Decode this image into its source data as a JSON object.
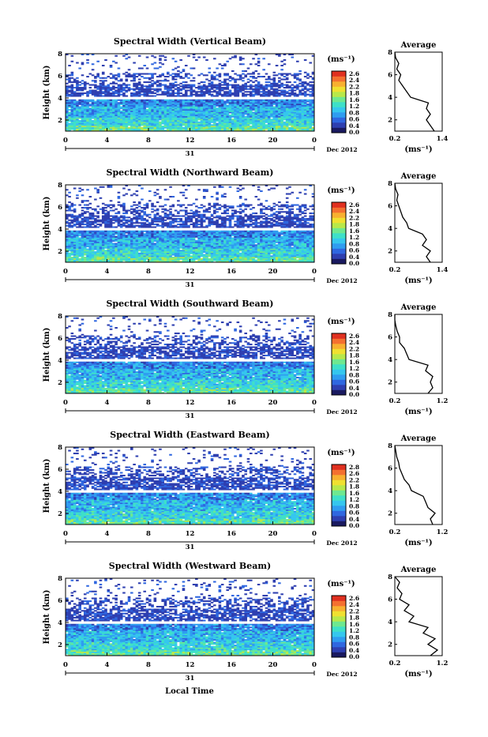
{
  "common": {
    "ylabel": "Height (km)",
    "x_ticks": [
      "0",
      "4",
      "8",
      "12",
      "16",
      "20",
      "0"
    ],
    "y_ticks": [
      "2",
      "4",
      "6",
      "8"
    ],
    "day": "31",
    "month_label": "Dec 2012",
    "units": "(ms⁻¹)",
    "avg_title": "Average",
    "xlabel": "Local Time"
  },
  "colorbar": {
    "colors": [
      "#1a1a60",
      "#2e3fb0",
      "#2f67e0",
      "#2f9df0",
      "#35c7ee",
      "#3ee0c8",
      "#6ee890",
      "#b8e84a",
      "#f0e030",
      "#f8b030",
      "#f47030",
      "#e03020"
    ]
  },
  "chart_data": [
    {
      "type": "heatmap",
      "title": "Spectral Width (Vertical Beam)",
      "x_range": [
        0,
        24
      ],
      "y_range": [
        1,
        8
      ],
      "colorbar_labels": [
        "2.6",
        "2.4",
        "2.2",
        "1.8",
        "1.6",
        "1.2",
        "0.8",
        "0.6",
        "0.4",
        "0.0"
      ],
      "average_profile": {
        "xlim": [
          0.2,
          1.4
        ],
        "x_ticks": [
          "0.2",
          "1.4"
        ],
        "ylim": [
          1,
          8
        ],
        "height": [
          1.0,
          1.5,
          2.0,
          2.5,
          3.0,
          3.5,
          4.0,
          4.5,
          5.0,
          5.5,
          6.0,
          6.5,
          7.0,
          7.5,
          8.0
        ],
        "width": [
          1.2,
          1.1,
          1.0,
          1.1,
          1.0,
          1.05,
          0.6,
          0.5,
          0.4,
          0.3,
          0.35,
          0.25,
          0.3,
          0.22,
          0.2
        ]
      }
    },
    {
      "type": "heatmap",
      "title": "Spectral Width (Northward Beam)",
      "x_range": [
        0,
        24
      ],
      "y_range": [
        1,
        8
      ],
      "colorbar_labels": [
        "2.6",
        "2.4",
        "2.2",
        "1.8",
        "1.6",
        "1.2",
        "0.8",
        "0.6",
        "0.4",
        "0.0"
      ],
      "average_profile": {
        "xlim": [
          0.2,
          1.4
        ],
        "x_ticks": [
          "0.2",
          "1.4"
        ],
        "ylim": [
          1,
          8
        ],
        "height": [
          1.0,
          1.5,
          2.0,
          2.5,
          3.0,
          3.5,
          4.0,
          4.5,
          5.0,
          5.5,
          6.0,
          6.5,
          7.0,
          7.5,
          8.0
        ],
        "width": [
          1.1,
          1.0,
          1.1,
          0.9,
          1.0,
          0.9,
          0.55,
          0.5,
          0.4,
          0.35,
          0.3,
          0.25,
          0.28,
          0.22,
          0.2
        ]
      }
    },
    {
      "type": "heatmap",
      "title": "Spectral Width (Southward Beam)",
      "x_range": [
        0,
        24
      ],
      "y_range": [
        1,
        8
      ],
      "colorbar_labels": [
        "2.6",
        "2.4",
        "2.2",
        "1.8",
        "1.6",
        "1.2",
        "0.8",
        "0.6",
        "0.4",
        "0.0"
      ],
      "average_profile": {
        "xlim": [
          0.2,
          1.2
        ],
        "x_ticks": [
          "0.2",
          "1.2"
        ],
        "ylim": [
          1,
          8
        ],
        "height": [
          1.0,
          1.5,
          2.0,
          2.5,
          3.0,
          3.5,
          4.0,
          4.5,
          5.0,
          5.5,
          6.0,
          6.5,
          7.0,
          7.5,
          8.0
        ],
        "width": [
          0.9,
          1.0,
          0.95,
          1.0,
          0.85,
          0.9,
          0.5,
          0.45,
          0.4,
          0.3,
          0.3,
          0.25,
          0.22,
          0.2,
          0.2
        ]
      }
    },
    {
      "type": "heatmap",
      "title": "Spectral Width (Eastward Beam)",
      "x_range": [
        0,
        24
      ],
      "y_range": [
        1,
        8
      ],
      "colorbar_labels": [
        "2.8",
        "2.6",
        "2.2",
        "1.8",
        "1.6",
        "1.2",
        "0.8",
        "0.6",
        "0.4",
        "0.0"
      ],
      "average_profile": {
        "xlim": [
          0.2,
          1.2
        ],
        "x_ticks": [
          "0.2",
          "1.2"
        ],
        "ylim": [
          1,
          8
        ],
        "height": [
          1.0,
          1.5,
          2.0,
          2.5,
          3.0,
          3.5,
          4.0,
          4.5,
          5.0,
          5.5,
          6.0,
          6.5,
          7.0,
          7.5,
          8.0
        ],
        "width": [
          1.0,
          0.95,
          1.05,
          0.9,
          0.85,
          0.8,
          0.55,
          0.5,
          0.4,
          0.35,
          0.3,
          0.28,
          0.24,
          0.22,
          0.2
        ]
      }
    },
    {
      "type": "heatmap",
      "title": "Spectral Width (Westward Beam)",
      "x_range": [
        0,
        24
      ],
      "y_range": [
        1,
        8
      ],
      "colorbar_labels": [
        "2.6",
        "2.4",
        "2.2",
        "1.8",
        "1.6",
        "1.2",
        "0.8",
        "0.6",
        "0.4",
        "0.0"
      ],
      "average_profile": {
        "xlim": [
          0.2,
          1.2
        ],
        "x_ticks": [
          "0.2",
          "1.2"
        ],
        "ylim": [
          1,
          8
        ],
        "height": [
          1.0,
          1.5,
          2.0,
          2.5,
          3.0,
          3.5,
          4.0,
          4.5,
          5.0,
          5.5,
          6.0,
          6.5,
          7.0,
          7.5,
          8.0
        ],
        "width": [
          0.95,
          1.1,
          0.9,
          1.05,
          0.8,
          0.9,
          0.5,
          0.6,
          0.4,
          0.5,
          0.3,
          0.35,
          0.25,
          0.3,
          0.2
        ]
      }
    }
  ]
}
